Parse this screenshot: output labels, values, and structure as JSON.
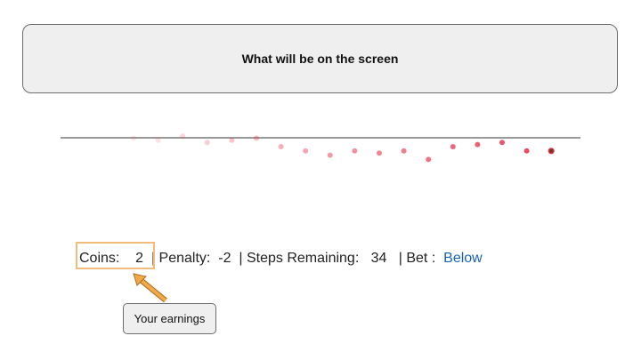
{
  "screen_box": {
    "title": "What will be on the screen"
  },
  "trail": {
    "dots": [
      {
        "offset": 1,
        "opacity": 0.12
      },
      {
        "offset": 2,
        "opacity": 0.15
      },
      {
        "offset": 0,
        "opacity": 0.2
      },
      {
        "offset": 3,
        "opacity": 0.25
      },
      {
        "offset": 2,
        "opacity": 0.3
      },
      {
        "offset": 1,
        "opacity": 0.35
      },
      {
        "offset": 5,
        "opacity": 0.4
      },
      {
        "offset": 7,
        "opacity": 0.45
      },
      {
        "offset": 9,
        "opacity": 0.5
      },
      {
        "offset": 7,
        "opacity": 0.55
      },
      {
        "offset": 8,
        "opacity": 0.6
      },
      {
        "offset": 7,
        "opacity": 0.65
      },
      {
        "offset": 11,
        "opacity": 0.7
      },
      {
        "offset": 5,
        "opacity": 0.75
      },
      {
        "offset": 4,
        "opacity": 0.8
      },
      {
        "offset": 3,
        "opacity": 0.85
      },
      {
        "offset": 7,
        "opacity": 0.9
      },
      {
        "offset": 7,
        "opacity": 1.0,
        "current": true
      }
    ],
    "dot_color": "#e8384f",
    "current_fill": "#7a3a20"
  },
  "status": {
    "coins_label": "Coins:",
    "coins_value": "2",
    "penalty_label": "| Penalty:",
    "penalty_value": "-2",
    "steps_label": "| Steps Remaining:",
    "steps_value": "34",
    "bet_label": "| Bet :",
    "bet_value": "Below"
  },
  "callout": {
    "text": "Your earnings"
  },
  "colors": {
    "highlight": "#f3bc7a",
    "arrow": "#e69a3c",
    "bet": "#1a63b3"
  }
}
